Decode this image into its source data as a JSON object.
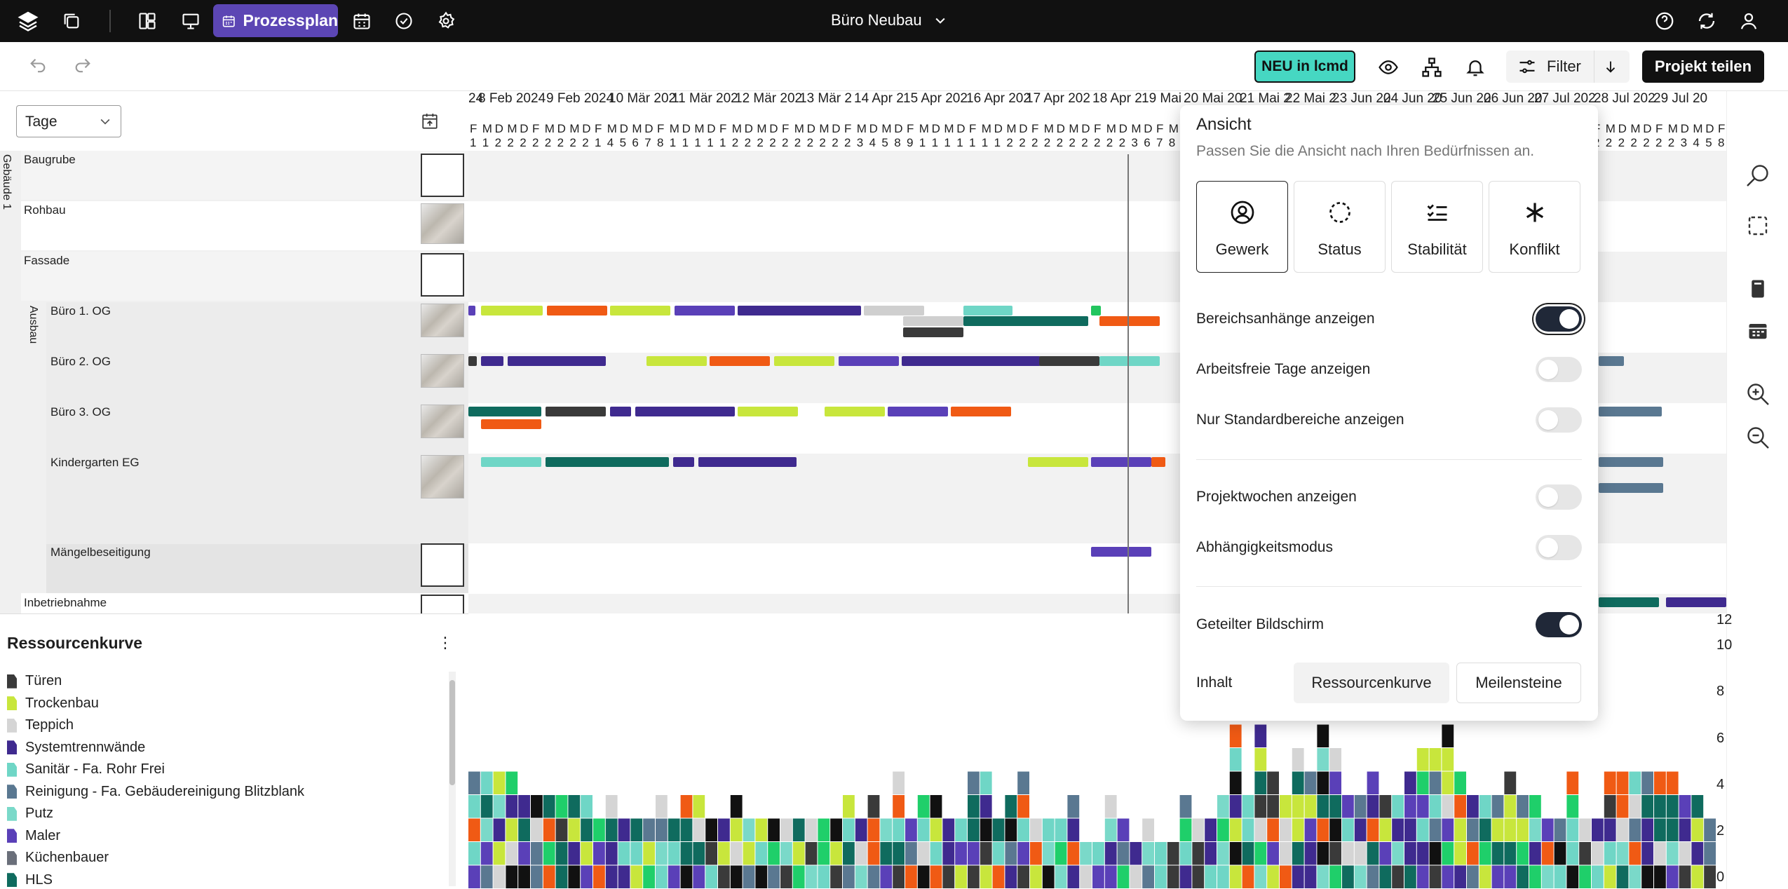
{
  "topbar": {
    "tab_label": "Prozessplan",
    "project_title": "Büro Neubau"
  },
  "toolbar": {
    "neu_label": "NEU in lcmd",
    "filter_label": "Filter",
    "share_label": "Projekt teilen"
  },
  "left": {
    "view_select": "Tage",
    "group_vertical": "Gebäude 1",
    "sub_group_vertical": "Ausbau",
    "rows": [
      "Baugrube",
      "Rohbau",
      "Fassade",
      "Büro 1. OG",
      "Büro 2. OG",
      "Büro 3. OG",
      "Kindergarten EG",
      "Mängelbeseitigung",
      "Inbetriebnahme"
    ]
  },
  "timeline": {
    "weeks": [
      "24",
      "8 Feb 2024",
      "9 Feb 2024",
      "10 Mär 202",
      "11 Mär 202",
      "12 Mär 202",
      "13 Mär 2",
      "14 Apr 2",
      "15 Apr 202",
      "16 Apr 202",
      "17 Apr 202",
      "18 Apr 2",
      "19 Mai",
      "20 Mai 20",
      "21 Mai 2",
      "22 Mai 2",
      "23 Jun 20",
      "24 Jun 20",
      "25 Jun 20",
      "26 Jun 20",
      "27 Jul 202",
      "28 Jul 202",
      "29 Jul 20"
    ],
    "day_initials": [
      "F",
      "M",
      "D",
      "M",
      "D",
      "F",
      "M",
      "D",
      "M",
      "D",
      "F",
      "M",
      "D",
      "M",
      "D",
      "F",
      "M",
      "D",
      "M",
      "D",
      "F",
      "M",
      "D",
      "M",
      "D",
      "F",
      "M",
      "D",
      "M",
      "D",
      "F",
      "M",
      "D",
      "M",
      "D",
      "F",
      "M",
      "D",
      "M",
      "D",
      "F",
      "M",
      "D",
      "M",
      "D",
      "F",
      "M",
      "D",
      "M",
      "D",
      "F",
      "M",
      "D",
      "M",
      "D",
      "F",
      "M",
      "D",
      "M",
      "D",
      "F",
      "M",
      "D",
      "M",
      "D",
      "F",
      "M",
      "D",
      "M",
      "D",
      "F",
      "M",
      "D",
      "M",
      "D",
      "F",
      "M",
      "D",
      "M",
      "D",
      "F",
      "M",
      "D",
      "M",
      "D",
      "F",
      "M",
      "D",
      "M",
      "D",
      "F",
      "M",
      "D",
      "M",
      "D",
      "F",
      "M",
      "D",
      "M",
      "D",
      "F",
      "M",
      "D",
      "M",
      "D",
      "F",
      "M",
      "D",
      "M",
      "D",
      "F"
    ],
    "day_numbers": [
      "1",
      "1",
      "2",
      "2",
      "2",
      "2",
      "2",
      "2",
      "2",
      "2",
      "1",
      "4",
      "5",
      "6",
      "7",
      "8",
      "1",
      "1",
      "1",
      "1",
      "1",
      "2",
      "2",
      "2",
      "2",
      "2",
      "2",
      "2",
      "2",
      "2",
      "2",
      "3",
      "4",
      "5",
      "8",
      "9",
      "1",
      "1",
      "1",
      "1",
      "1",
      "1",
      "1",
      "2",
      "2",
      "2",
      "2",
      "2",
      "2",
      "2",
      "2",
      "2",
      "2",
      "3",
      "6",
      "7",
      "8",
      "1",
      "1",
      "1",
      "1",
      "1",
      "1",
      "1",
      "2",
      "2",
      "2",
      "2",
      "2",
      "2",
      "2",
      "2",
      "2",
      "2",
      "3",
      "4",
      "5",
      "8",
      "9",
      "1",
      "1",
      "1",
      "1",
      "1",
      "1",
      "1",
      "2",
      "2",
      "2",
      "2",
      "2",
      "2",
      "2",
      "2",
      "2",
      "2",
      "2",
      "3",
      "4",
      "5",
      "8",
      "9",
      "1",
      "1",
      "1",
      "1",
      "1",
      "1",
      "1",
      "2",
      "2"
    ]
  },
  "resource": {
    "title": "Ressourcenkurve",
    "legend": [
      {
        "name": "Türen",
        "color": "#3a3a3a"
      },
      {
        "name": "Trockenbau",
        "color": "#c8e63c"
      },
      {
        "name": "Teppich",
        "color": "#d5d5d5"
      },
      {
        "name": "Systemtrennwände",
        "color": "#3f2a8f"
      },
      {
        "name": "Sanitär - Fa. Rohr Frei",
        "color": "#6fd6c6"
      },
      {
        "name": "Reinigung - Fa. Gebäudereinigung Blitzblank",
        "color": "#5a7891"
      },
      {
        "name": "Putz",
        "color": "#7ad9c9"
      },
      {
        "name": "Maler",
        "color": "#5a40b8"
      },
      {
        "name": "Küchenbauer",
        "color": "#6a6f7a"
      },
      {
        "name": "HLS",
        "color": "#0f6b5e"
      }
    ],
    "yticks": [
      "12",
      "10",
      "8",
      "6",
      "4",
      "2",
      "0"
    ]
  },
  "popover": {
    "title": "Ansicht",
    "subtitle": "Passen Sie die Ansicht nach Ihren Bedürfnissen an.",
    "views": [
      "Gewerk",
      "Status",
      "Stabilität",
      "Konflikt"
    ],
    "options": [
      {
        "label": "Bereichsanhänge anzeigen",
        "on": true
      },
      {
        "label": "Arbeitsfreie Tage anzeigen",
        "on": false
      },
      {
        "label": "Nur Standardbereiche anzeigen",
        "on": false
      },
      {
        "label": "Projektwochen anzeigen",
        "on": false
      },
      {
        "label": "Abhängigkeitsmodus",
        "on": false
      },
      {
        "label": "Geteilter Bildschirm",
        "on": true
      }
    ],
    "content_label": "Inhalt",
    "content_buttons": [
      "Ressourcenkurve",
      "Meilensteine"
    ]
  }
}
